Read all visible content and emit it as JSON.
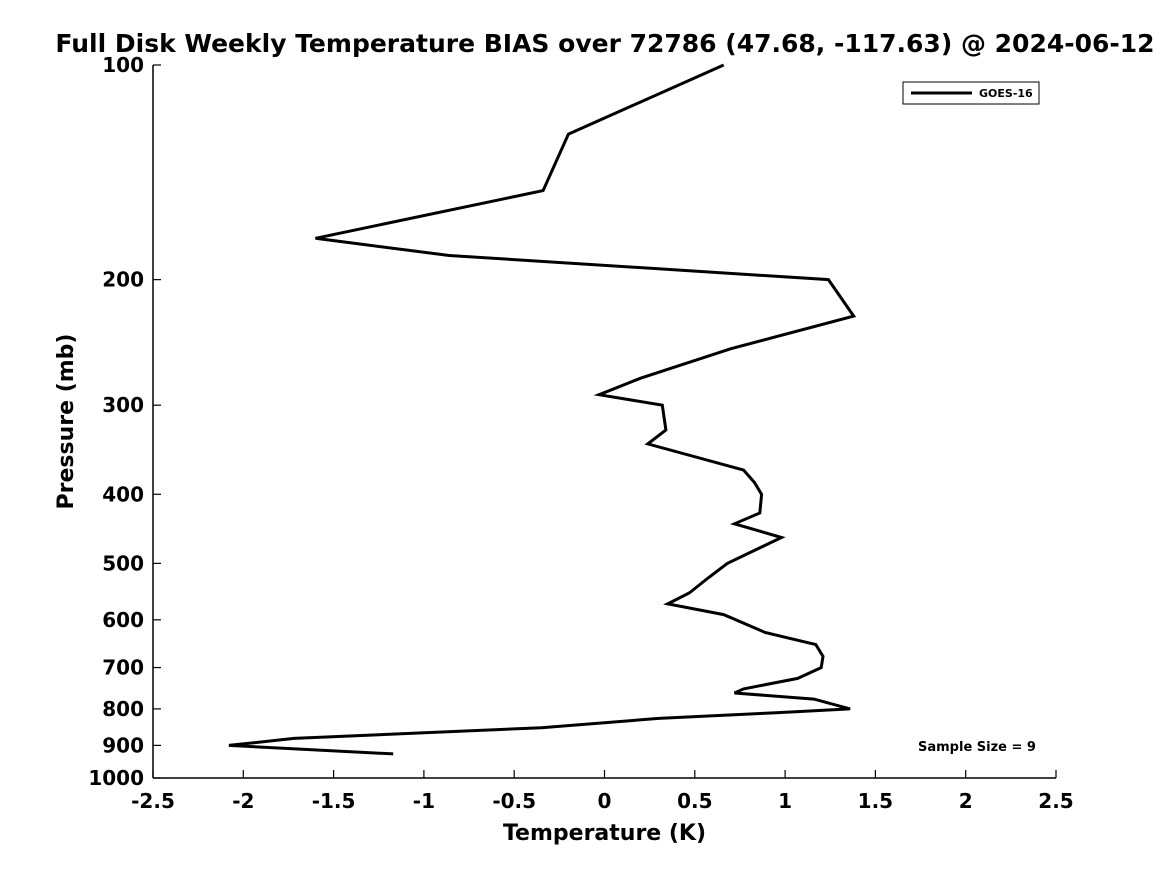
{
  "chart_data": {
    "type": "line",
    "title": "Full Disk Weekly Temperature BIAS over 72786 (47.68, -117.63) @ 2024-06-12",
    "xlabel": "Temperature (K)",
    "ylabel": "Pressure (mb)",
    "xlim": [
      -2.5,
      2.5
    ],
    "ylim": [
      1000,
      100
    ],
    "yscale": "log",
    "xticks": [
      -2.5,
      -2,
      -1.5,
      -1,
      -0.5,
      0,
      0.5,
      1,
      1.5,
      2,
      2.5
    ],
    "xtick_labels": [
      "-2.5",
      "-2",
      "-1.5",
      "-1",
      "-0.5",
      "0",
      "0.5",
      "1",
      "1.5",
      "2",
      "2.5"
    ],
    "yticks": [
      100,
      200,
      300,
      400,
      500,
      600,
      700,
      800,
      900,
      1000
    ],
    "ytick_labels": [
      "100",
      "200",
      "300",
      "400",
      "500",
      "600",
      "700",
      "800",
      "900",
      "1000"
    ],
    "grid": false,
    "legend": {
      "position": "top-right",
      "entries": [
        "GOES-16"
      ]
    },
    "annotation": "Sample Size = 9",
    "series": [
      {
        "name": "GOES-16",
        "color": "#000000",
        "points": [
          {
            "t": 0.66,
            "p": 100
          },
          {
            "t": -0.2,
            "p": 125
          },
          {
            "t": -0.34,
            "p": 150
          },
          {
            "t": -1.6,
            "p": 175
          },
          {
            "t": -0.86,
            "p": 185
          },
          {
            "t": 1.24,
            "p": 200
          },
          {
            "t": 1.38,
            "p": 225
          },
          {
            "t": 0.7,
            "p": 250
          },
          {
            "t": 0.2,
            "p": 275
          },
          {
            "t": -0.03,
            "p": 290
          },
          {
            "t": 0.32,
            "p": 300
          },
          {
            "t": 0.34,
            "p": 325
          },
          {
            "t": 0.24,
            "p": 340
          },
          {
            "t": 0.77,
            "p": 370
          },
          {
            "t": 0.83,
            "p": 385
          },
          {
            "t": 0.87,
            "p": 400
          },
          {
            "t": 0.86,
            "p": 425
          },
          {
            "t": 0.72,
            "p": 440
          },
          {
            "t": 0.98,
            "p": 460
          },
          {
            "t": 0.68,
            "p": 500
          },
          {
            "t": 0.57,
            "p": 525
          },
          {
            "t": 0.47,
            "p": 550
          },
          {
            "t": 0.35,
            "p": 570
          },
          {
            "t": 0.66,
            "p": 590
          },
          {
            "t": 0.89,
            "p": 625
          },
          {
            "t": 1.17,
            "p": 650
          },
          {
            "t": 1.21,
            "p": 675
          },
          {
            "t": 1.2,
            "p": 700
          },
          {
            "t": 1.07,
            "p": 725
          },
          {
            "t": 0.77,
            "p": 750
          },
          {
            "t": 0.72,
            "p": 760
          },
          {
            "t": 1.16,
            "p": 775
          },
          {
            "t": 1.36,
            "p": 800
          },
          {
            "t": 0.95,
            "p": 810
          },
          {
            "t": 0.3,
            "p": 825
          },
          {
            "t": -0.35,
            "p": 850
          },
          {
            "t": -1.72,
            "p": 880
          },
          {
            "t": -2.08,
            "p": 900
          },
          {
            "t": -1.17,
            "p": 925
          }
        ]
      }
    ]
  }
}
